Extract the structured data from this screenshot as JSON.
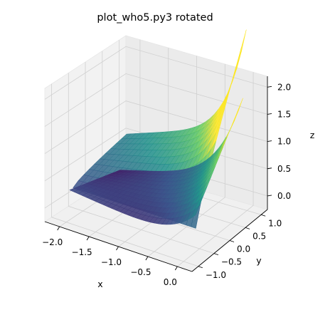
{
  "chart_data": {
    "type": "surface",
    "title": "plot_who5.py3 rotated",
    "xlabel": "x",
    "ylabel": "y",
    "zlabel": "z",
    "xlim": [
      -2.25,
      0.25
    ],
    "ylim": [
      -1.2,
      1.2
    ],
    "zlim": [
      -0.25,
      2.2
    ],
    "xticks": [
      "−2.0",
      "−1.5",
      "−1.0",
      "−0.5",
      "0.0"
    ],
    "yticks": [
      "−1.0",
      "−0.5",
      "0.0",
      "0.5",
      "1.0"
    ],
    "zticks": [
      "0.0",
      "0.5",
      "1.0",
      "1.5",
      "2.0"
    ],
    "xtick_values": [
      -2.0,
      -1.5,
      -1.0,
      -0.5,
      0.0
    ],
    "ytick_values": [
      -1.0,
      -0.5,
      0.0,
      0.5,
      1.0
    ],
    "ztick_values": [
      0.0,
      0.5,
      1.0,
      1.5,
      2.0
    ],
    "colormap": "viridis",
    "colormap_stops": [
      "#440154",
      "#3b528b",
      "#21918c",
      "#5ec962",
      "#fde725"
    ],
    "grid": true
  }
}
